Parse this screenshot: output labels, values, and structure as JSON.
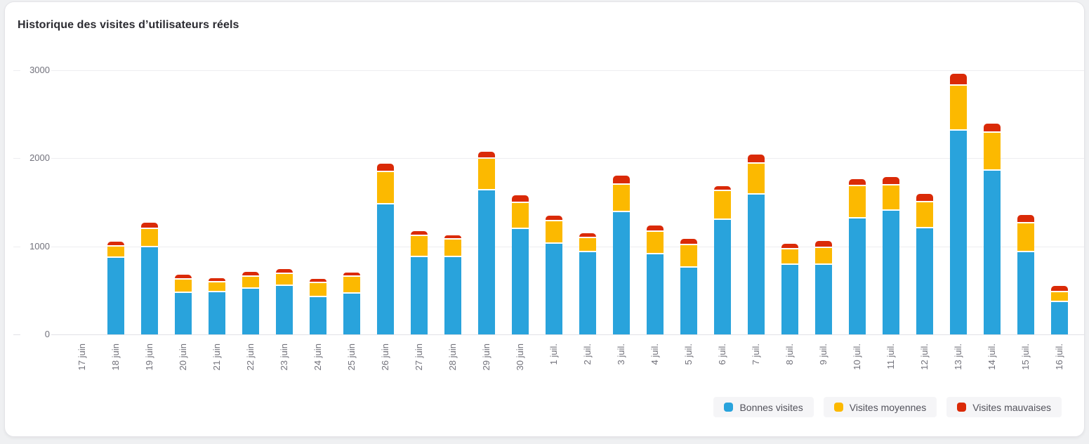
{
  "header": {
    "title": "Historique des visites d’utilisateurs réels"
  },
  "chart_data": {
    "type": "bar",
    "stacked": true,
    "title": "Historique des visites d’utilisateurs réels",
    "xlabel": "",
    "ylabel": "",
    "ylim": [
      0,
      3000
    ],
    "yticks": [
      0,
      1000,
      2000,
      3000
    ],
    "grid": "horizontal",
    "legend_position": "bottom-right",
    "categories": [
      "17 juin",
      "18 juin",
      "19 juin",
      "20 juin",
      "21 juin",
      "22 juin",
      "23 juin",
      "24 juin",
      "25 juin",
      "26 juin",
      "27 juin",
      "28 juin",
      "29 juin",
      "30 juin",
      "1 juil.",
      "2 juil.",
      "3 juil.",
      "4 juil.",
      "5 juil.",
      "6 juil.",
      "7 juil.",
      "8 juil.",
      "9 juil.",
      "10 juil.",
      "11 juil.",
      "12 juil.",
      "13 juil.",
      "14 juil.",
      "15 juil.",
      "16 juil."
    ],
    "series": [
      {
        "name": "Bonnes visites",
        "color": "#29a3dc",
        "values": [
          0,
          870,
          990,
          470,
          480,
          520,
          550,
          425,
          465,
          1475,
          880,
          880,
          1635,
          1200,
          1030,
          935,
          1390,
          910,
          760,
          1300,
          1590,
          790,
          790,
          1315,
          1405,
          1205,
          2315,
          1860,
          935,
          370
        ]
      },
      {
        "name": "Visites moyennes",
        "color": "#fcb900",
        "values": [
          0,
          110,
          190,
          135,
          95,
          120,
          120,
          145,
          175,
          350,
          225,
          180,
          345,
          280,
          240,
          145,
          295,
          240,
          240,
          310,
          335,
          160,
          175,
          350,
          270,
          280,
          495,
          415,
          310,
          95
        ]
      },
      {
        "name": "Visites mauvaises",
        "color": "#da2a07",
        "values": [
          0,
          40,
          55,
          40,
          30,
          40,
          40,
          35,
          30,
          80,
          40,
          35,
          65,
          75,
          45,
          40,
          85,
          55,
          55,
          40,
          85,
          50,
          65,
          65,
          80,
          80,
          120,
          90,
          80,
          55
        ]
      }
    ]
  },
  "colors": {
    "card_background": "#ffffff",
    "page_background": "#eff0f2",
    "grid": "#ededf0",
    "axis_text": "#72727c",
    "legend_pill": "#f5f5f7"
  }
}
